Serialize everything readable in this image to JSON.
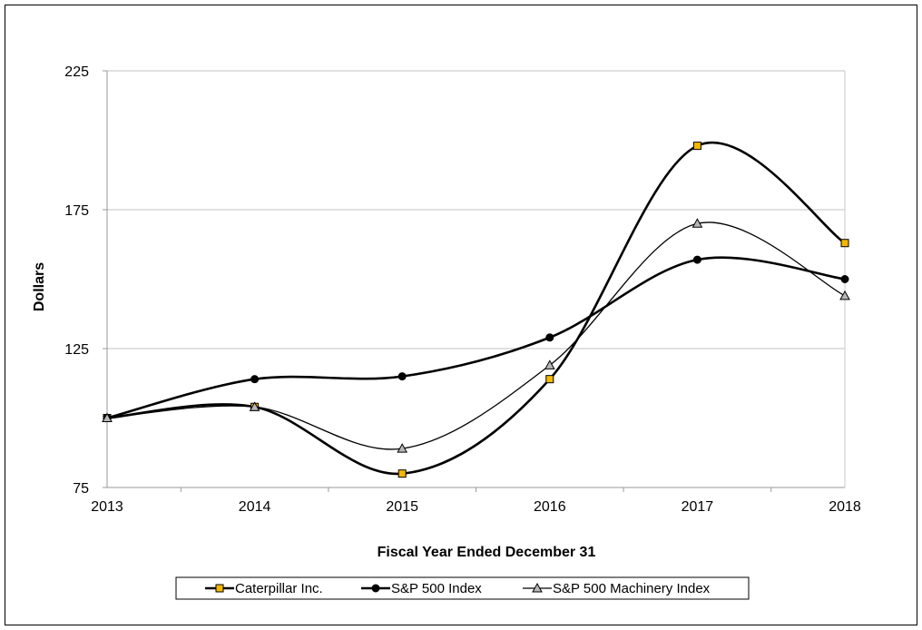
{
  "chart_data": {
    "type": "line",
    "title": "",
    "xlabel": "Fiscal Year Ended December 31",
    "ylabel": "Dollars",
    "categories": [
      "2013",
      "2014",
      "2015",
      "2016",
      "2017",
      "2018"
    ],
    "ylim": [
      75,
      225
    ],
    "yticks": [
      75,
      125,
      175,
      225
    ],
    "ytick_labels": [
      "75",
      "125",
      "175",
      "225"
    ],
    "grid": true,
    "smooth": true,
    "legend_position": "bottom",
    "series": [
      {
        "name": "Caterpillar Inc.",
        "values": [
          100,
          104,
          80,
          114,
          198,
          163
        ],
        "marker": "square",
        "color": "#000000",
        "marker_fill": "#f5b800"
      },
      {
        "name": "S&P 500 Index",
        "values": [
          100,
          114,
          115,
          129,
          157,
          150
        ],
        "marker": "circle",
        "color": "#000000",
        "marker_fill": "#000000"
      },
      {
        "name": "S&P 500 Machinery Index",
        "values": [
          100,
          104,
          89,
          119,
          170,
          144
        ],
        "marker": "triangle",
        "color": "#000000",
        "marker_fill": "#b7b7b7"
      }
    ]
  }
}
